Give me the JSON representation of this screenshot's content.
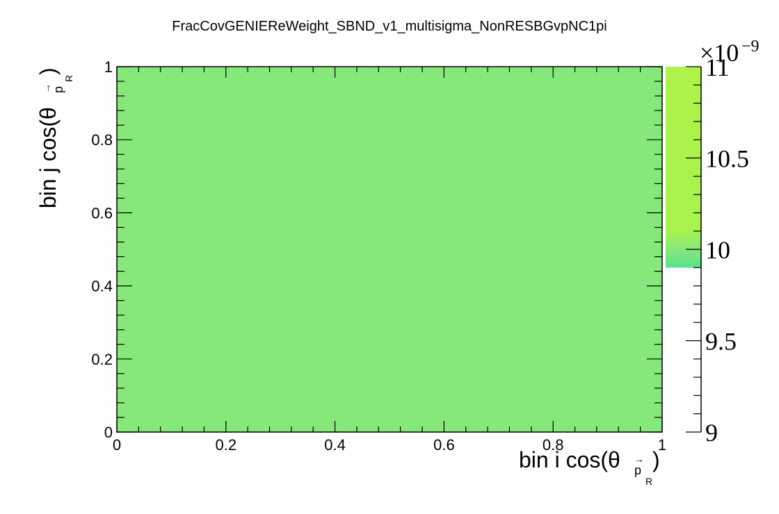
{
  "chart_data": {
    "type": "heatmap",
    "title": "FracCovGENIEReWeight_SBND_v1_multisigma_NonRESBGvpNC1pi",
    "xlabel": {
      "text": "bin i cos(θ",
      "sub": "p",
      "subsub": "R",
      "close": ")"
    },
    "ylabel": {
      "text": "bin j cos(θ",
      "sub": "p",
      "subsub": "R",
      "close": ")"
    },
    "xlim": [
      0,
      1
    ],
    "ylim": [
      0,
      1
    ],
    "x_ticks": [
      "0",
      "0.2",
      "0.4",
      "0.6",
      "0.8",
      "1"
    ],
    "y_ticks": [
      "0",
      "0.2",
      "0.4",
      "0.6",
      "0.8",
      "1"
    ],
    "cells": [
      {
        "x": [
          0,
          1
        ],
        "y": [
          0,
          1
        ],
        "value": 9.9e-09,
        "color": "#86e87b"
      }
    ],
    "colorbar": {
      "range": [
        9,
        11
      ],
      "multiplier": "×10",
      "exponent": "−9",
      "ticks": [
        "9",
        "9.5",
        "10",
        "10.5",
        "11"
      ],
      "gradient": [
        {
          "value": 9.9,
          "color": "#5ae08e"
        },
        {
          "value": 10.0,
          "color": "#86e87b"
        },
        {
          "value": 10.1,
          "color": "#a8f24e"
        },
        {
          "value": 11.0,
          "color": "#aef24a"
        }
      ]
    },
    "grid": false,
    "legend": "none"
  }
}
